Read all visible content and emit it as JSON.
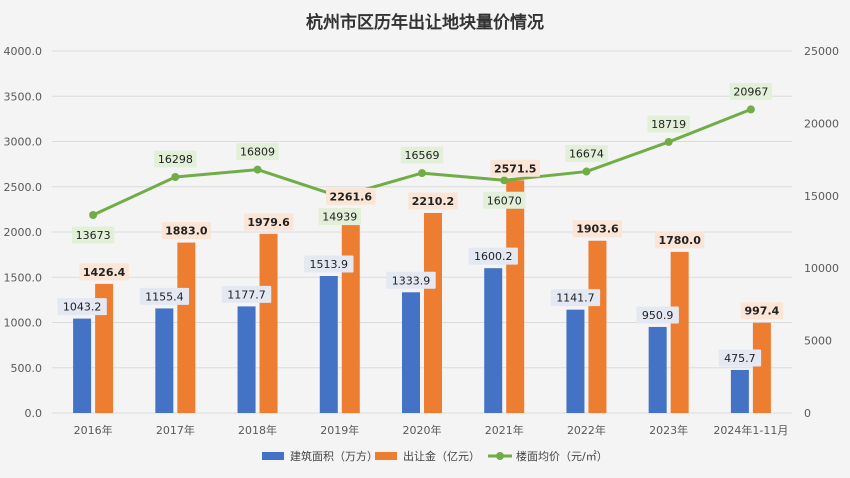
{
  "chart_data": {
    "type": "bar",
    "title": "杭州市区历年出让地块量价情况",
    "categories": [
      "2016年",
      "2017年",
      "2018年",
      "2019年",
      "2020年",
      "2021年",
      "2022年",
      "2023年",
      "2024年1-11月"
    ],
    "series": [
      {
        "name": "建筑面积（万方）",
        "type": "bar",
        "axis": "left",
        "color": "#4472c4",
        "values": [
          1043.2,
          1155.4,
          1177.7,
          1513.9,
          1333.9,
          1600.2,
          1141.7,
          950.9,
          475.7
        ],
        "labels": [
          "1043.2",
          "1155.4",
          "1177.7",
          "1513.9",
          "1333.9",
          "1600.2",
          "1141.7",
          "950.9",
          "475.7"
        ]
      },
      {
        "name": "出让金（亿元）",
        "type": "bar",
        "axis": "left",
        "color": "#ed7d31",
        "values": [
          1426.4,
          1883.0,
          1979.6,
          2261.6,
          2210.2,
          2571.5,
          1903.6,
          1780.0,
          997.4
        ],
        "labels": [
          "1426.4",
          "1883.0",
          "1979.6",
          "2261.6",
          "2210.2",
          "2571.5",
          "1903.6",
          "1780.0",
          "997.4"
        ]
      },
      {
        "name": "楼面均价（元/㎡）",
        "type": "line",
        "axis": "right",
        "color": "#70ad47",
        "values": [
          13673,
          16298,
          16809,
          14939,
          16569,
          16070,
          16674,
          18719,
          20967
        ],
        "labels": [
          "13673",
          "16298",
          "16809",
          "14939",
          "16569",
          "16070",
          "16674",
          "18719",
          "20967"
        ]
      }
    ],
    "y_left": {
      "min": 0,
      "max": 4000,
      "step": 500,
      "ticks": [
        "0.0",
        "500.0",
        "1000.0",
        "1500.0",
        "2000.0",
        "2500.0",
        "3000.0",
        "3500.0",
        "4000.0"
      ]
    },
    "y_right": {
      "min": 0,
      "max": 25000,
      "step": 5000,
      "ticks": [
        "0",
        "5000",
        "10000",
        "15000",
        "20000",
        "25000"
      ]
    },
    "grid": true,
    "legend_position": "bottom"
  }
}
